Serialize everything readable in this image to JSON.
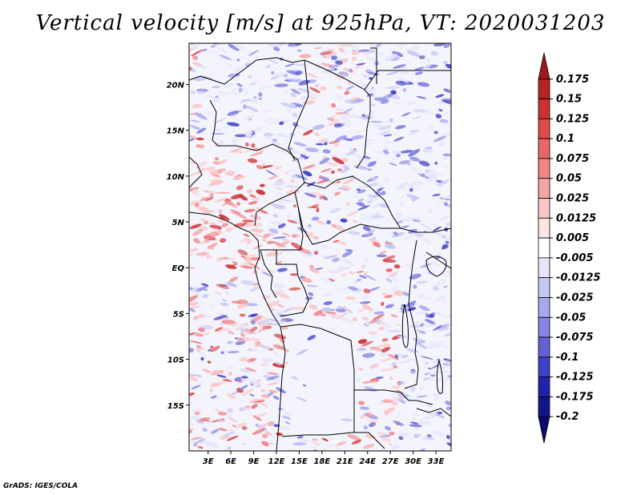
{
  "chart_data": {
    "type": "heatmap",
    "title": "Vertical velocity [m/s] at 925hPa, VT: 2020031203",
    "x_tick_labels": [
      "3E",
      "6E",
      "9E",
      "12E",
      "15E",
      "18E",
      "21E",
      "24E",
      "27E",
      "30E",
      "33E"
    ],
    "x_ticks": [
      3,
      6,
      9,
      12,
      15,
      18,
      21,
      24,
      27,
      30,
      33
    ],
    "y_tick_labels": [
      "20N",
      "15N",
      "10N",
      "5N",
      "EQ",
      "5S",
      "10S",
      "15S"
    ],
    "y_ticks": [
      20,
      15,
      10,
      5,
      0,
      -5,
      -10,
      -15
    ],
    "xlim": [
      0.5,
      35.0
    ],
    "ylim": [
      -20.0,
      24.5
    ],
    "colorbar": {
      "labels": [
        "0.175",
        "0.15",
        "0.125",
        "0.1",
        "0.075",
        "0.05",
        "0.025",
        "0.0125",
        "0.005",
        "-0.005",
        "-0.0125",
        "-0.025",
        "-0.05",
        "-0.075",
        "-0.1",
        "-0.125",
        "-0.175",
        "-0.2"
      ],
      "colors": [
        "#a01a1a",
        "#b52424",
        "#cc3030",
        "#dd4a4a",
        "#e86666",
        "#f08585",
        "#f5a5a5",
        "#fac6c6",
        "#fde6e6",
        "#ffffff",
        "#e6e6fb",
        "#c8c8f5",
        "#a8a8ee",
        "#8585e4",
        "#6262d6",
        "#4040c4",
        "#2222a8",
        "#14148a",
        "#0a0a6e"
      ]
    },
    "grid": false
  },
  "credit": "GrADS: IGES/COLA"
}
